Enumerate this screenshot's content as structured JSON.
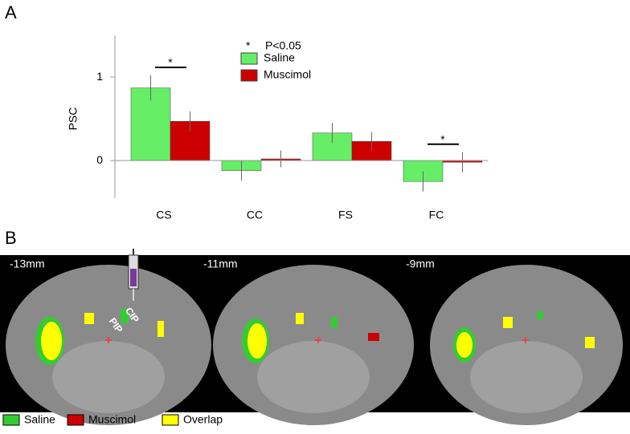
{
  "panel_labels": [
    "A",
    "B"
  ],
  "chart_data": {
    "type": "bar",
    "y_label": "PSC",
    "categories": [
      "CS",
      "CC",
      "FS",
      "FC"
    ],
    "series": [
      {
        "name": "Saline",
        "color": "#66ee66",
        "values": [
          0.87,
          -0.12,
          0.33,
          -0.25
        ],
        "errors": [
          0.15,
          0.12,
          0.12,
          0.12
        ]
      },
      {
        "name": "Muscimol",
        "color": "#cc0000",
        "values": [
          0.47,
          0.02,
          0.23,
          -0.02
        ],
        "errors": [
          0.12,
          0.1,
          0.11,
          0.12
        ]
      }
    ],
    "ylim": [
      -0.45,
      1.5
    ],
    "yticks": [
      0,
      1
    ],
    "note": {
      "symbol": "*",
      "text": "P<0.05"
    },
    "significance": [
      {
        "category": "CS",
        "label": "*"
      },
      {
        "category": "FC",
        "label": "*"
      }
    ]
  },
  "panel_b": {
    "slices": [
      "-13mm",
      "-11mm",
      "-9mm"
    ],
    "annotations": [
      "CIP",
      "PIP"
    ],
    "legend": [
      {
        "name": "Saline",
        "color": "#33cc33"
      },
      {
        "name": "Muscimol",
        "color": "#cc0000"
      },
      {
        "name": "Overlap",
        "color": "#ffff00"
      }
    ]
  }
}
